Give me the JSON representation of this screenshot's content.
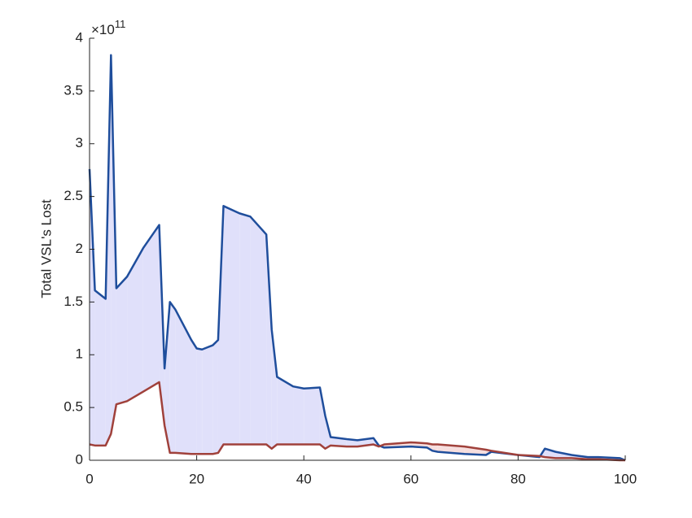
{
  "chart_data": {
    "type": "line",
    "ylabel": "Total VSL's Lost",
    "y_multiplier_base": "×10",
    "y_multiplier_exponent": "11",
    "x": [
      0,
      1,
      3,
      4,
      5,
      7,
      10,
      13,
      14,
      15,
      16,
      19,
      20,
      21,
      23,
      24,
      25,
      28,
      30,
      33,
      34,
      35,
      38,
      40,
      43,
      44,
      45,
      48,
      50,
      53,
      54,
      55,
      60,
      63,
      64,
      65,
      70,
      74,
      75,
      80,
      84,
      85,
      87,
      90,
      93,
      95,
      99,
      100
    ],
    "series": [
      {
        "color": "#1f4e9c",
        "values": [
          2.76,
          1.61,
          1.53,
          3.84,
          1.63,
          1.74,
          2.01,
          2.23,
          0.87,
          1.5,
          1.43,
          1.14,
          1.06,
          1.05,
          1.09,
          1.14,
          2.41,
          2.34,
          2.31,
          2.14,
          1.24,
          0.79,
          0.7,
          0.68,
          0.69,
          0.42,
          0.22,
          0.2,
          0.19,
          0.21,
          0.14,
          0.12,
          0.13,
          0.12,
          0.09,
          0.08,
          0.06,
          0.05,
          0.08,
          0.05,
          0.03,
          0.11,
          0.08,
          0.05,
          0.03,
          0.03,
          0.02,
          0.0
        ]
      },
      {
        "color": "#a0413b",
        "values": [
          0.15,
          0.14,
          0.14,
          0.25,
          0.53,
          0.56,
          0.65,
          0.74,
          0.33,
          0.07,
          0.07,
          0.06,
          0.06,
          0.06,
          0.06,
          0.07,
          0.15,
          0.15,
          0.15,
          0.15,
          0.11,
          0.15,
          0.15,
          0.15,
          0.15,
          0.11,
          0.14,
          0.13,
          0.13,
          0.15,
          0.13,
          0.15,
          0.17,
          0.16,
          0.15,
          0.15,
          0.13,
          0.1,
          0.09,
          0.05,
          0.04,
          0.03,
          0.02,
          0.02,
          0.01,
          0.01,
          0.0,
          0.0
        ]
      }
    ],
    "fill_above_color": "#e0e0fa",
    "fill_below_color": "#f6dede",
    "xlim": [
      0,
      100
    ],
    "xticks": [
      0,
      20,
      40,
      60,
      80,
      100
    ],
    "ylim": [
      0,
      4
    ],
    "yticks": [
      0,
      0.5,
      1,
      1.5,
      2,
      2.5,
      3,
      3.5,
      4
    ]
  }
}
